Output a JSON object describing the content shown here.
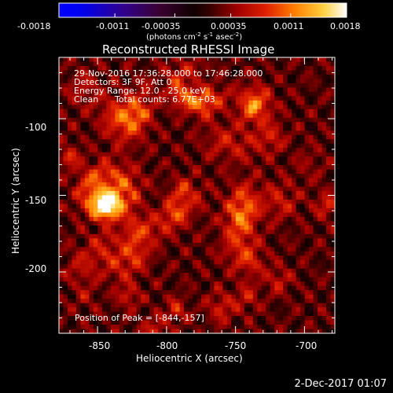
{
  "colorbar": {
    "ticks": [
      "-0.0018",
      "-0.0011",
      "-0.00035",
      "0.00035",
      "0.0011",
      "0.0018"
    ],
    "units_main": "(photons cm",
    "units_sup1": "-2",
    "units_mid1": " s",
    "units_sup2": "-1",
    "units_mid2": " asec",
    "units_sup3": "-2",
    "units_end": ")"
  },
  "title": "Reconstructed RHESSI Image",
  "info": {
    "time_range": "29-Nov-2016 17:36:28.000 to 17:46:28.000",
    "detectors": "Detectors: 3F 9F, Att 0",
    "energy": "Energy Range: 12.0 - 25.0 keV",
    "algo": "Clean",
    "counts": "Total counts: 6.77E+03"
  },
  "peak_label": "Position of Peak = [-844,-157]",
  "stamp": "2-Dec-2017 01:07",
  "chart_data": {
    "type": "heatmap",
    "title": "Reconstructed RHESSI Image",
    "xlabel": "Heliocentric X (arcsec)",
    "ylabel": "Heliocentric Y (arcsec)",
    "xlim": [
      -878,
      -678
    ],
    "ylim": [
      -240,
      -60
    ],
    "xticks": [
      -850,
      -800,
      -750,
      -700
    ],
    "yticks": [
      -100,
      -150,
      -200
    ],
    "xtick_labels": [
      "-850",
      "-800",
      "-750",
      "-700"
    ],
    "ytick_labels": [
      "-100",
      "-150",
      "-200"
    ],
    "colorbar_range": [
      -0.0018,
      0.0018
    ],
    "peak": {
      "x": -844,
      "y": -157
    }
  },
  "colors": {
    "bg": "#000000",
    "fg": "#ffffff"
  }
}
